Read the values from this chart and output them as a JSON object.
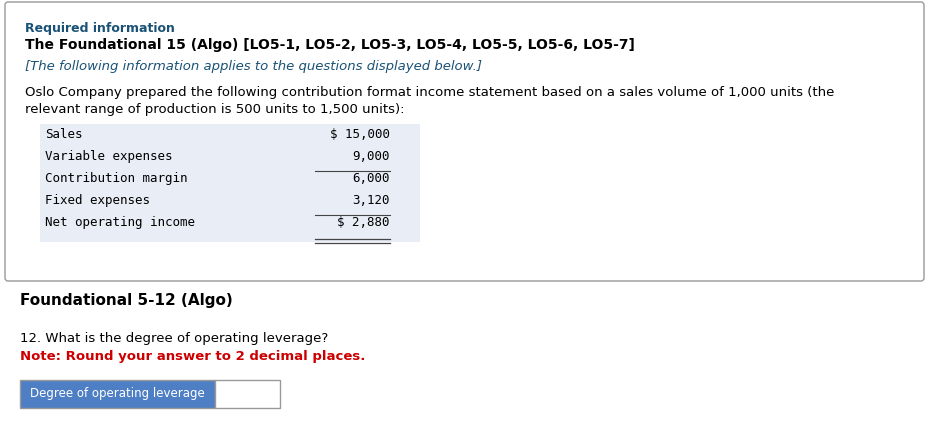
{
  "required_info_label": "Required information",
  "title_bold": "The Foundational 15 (Algo) [LO5-1, LO5-2, LO5-3, LO5-4, LO5-5, LO5-6, LO5-7]",
  "italic_line": "[The following information applies to the questions displayed below.]",
  "body_line1": "Oslo Company prepared the following contribution format income statement based on a sales volume of 1,000 units (the",
  "body_line2": "relevant range of production is 500 units to 1,500 units):",
  "table_rows": [
    {
      "label": "Sales",
      "value": "$ 15,000",
      "underline_below": false,
      "double_underline": false
    },
    {
      "label": "Variable expenses",
      "value": "9,000",
      "underline_below": true,
      "double_underline": false
    },
    {
      "label": "Contribution margin",
      "value": "6,000",
      "underline_below": false,
      "double_underline": false
    },
    {
      "label": "Fixed expenses",
      "value": "3,120",
      "underline_below": true,
      "double_underline": false
    },
    {
      "label": "Net operating income",
      "value": "$ 2,880",
      "underline_below": false,
      "double_underline": true
    }
  ],
  "section2_title": "Foundational 5-12 (Algo)",
  "question_text": "12. What is the degree of operating leverage?",
  "note_text": "Note: Round your answer to 2 decimal places.",
  "input_label": "Degree of operating leverage",
  "bg_color": "#ffffff",
  "box_border_color": "#999999",
  "required_info_color": "#1a5276",
  "title_color": "#000000",
  "italic_color": "#1a5276",
  "body_color": "#000000",
  "note_color": "#cc0000",
  "table_shade_color": "#d9e2f0",
  "input_label_bg": "#4e7fc4",
  "input_label_color": "#ffffff",
  "input_box_bg": "#ffffff",
  "input_box_border": "#999999",
  "mono_font": "DejaVu Sans Mono",
  "sans_font": "DejaVu Sans"
}
